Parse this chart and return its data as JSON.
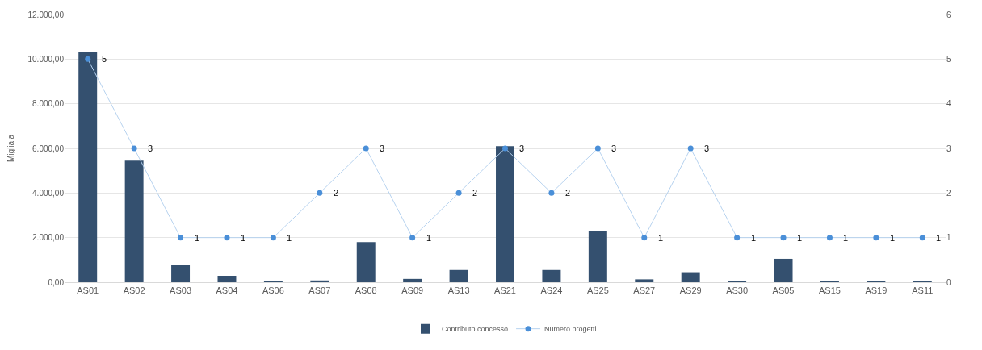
{
  "chart_data": {
    "type": "bar",
    "ylabel": "Migliaia",
    "categories": [
      "AS01",
      "AS02",
      "AS03",
      "AS04",
      "AS06",
      "AS07",
      "AS08",
      "AS09",
      "AS13",
      "AS21",
      "AS24",
      "AS25",
      "AS27",
      "AS29",
      "AS30",
      "AS05",
      "AS15",
      "AS19",
      "AS11"
    ],
    "series": [
      {
        "name": "Contributo concesso",
        "color": "#34506f",
        "values": [
          10300,
          5450,
          780,
          290,
          30,
          80,
          1800,
          150,
          550,
          6100,
          550,
          2280,
          130,
          450,
          30,
          1050,
          10,
          10,
          30
        ]
      },
      {
        "name": "Numero progetti",
        "type": "line",
        "axis": "y2",
        "color": "#4a8fd8",
        "marker": "circle",
        "values": [
          5,
          3,
          1,
          1,
          1,
          2,
          3,
          1,
          2,
          3,
          2,
          3,
          1,
          3,
          1,
          1,
          1,
          1,
          1
        ],
        "value_labels": [
          "5",
          "3",
          "1",
          "1",
          "1",
          "2",
          "3",
          "1",
          "2",
          "3",
          "2",
          "3",
          "1",
          "3",
          "1",
          "1",
          "1",
          "1",
          "1"
        ]
      }
    ],
    "ylim": [
      0,
      12000
    ],
    "yticks": [
      {
        "value": 0,
        "label": "0,00"
      },
      {
        "value": 2000,
        "label": "2.000,00"
      },
      {
        "value": 4000,
        "label": "4.000,00"
      },
      {
        "value": 6000,
        "label": "6.000,00"
      },
      {
        "value": 8000,
        "label": "8.000,00"
      },
      {
        "value": 10000,
        "label": "10.000,00"
      },
      {
        "value": 12000,
        "label": "12.000,00"
      }
    ],
    "y2lim": [
      0,
      6
    ],
    "y2ticks": [
      0,
      1,
      2,
      3,
      4,
      5,
      6
    ],
    "grid": "y",
    "legend": "bottom"
  }
}
